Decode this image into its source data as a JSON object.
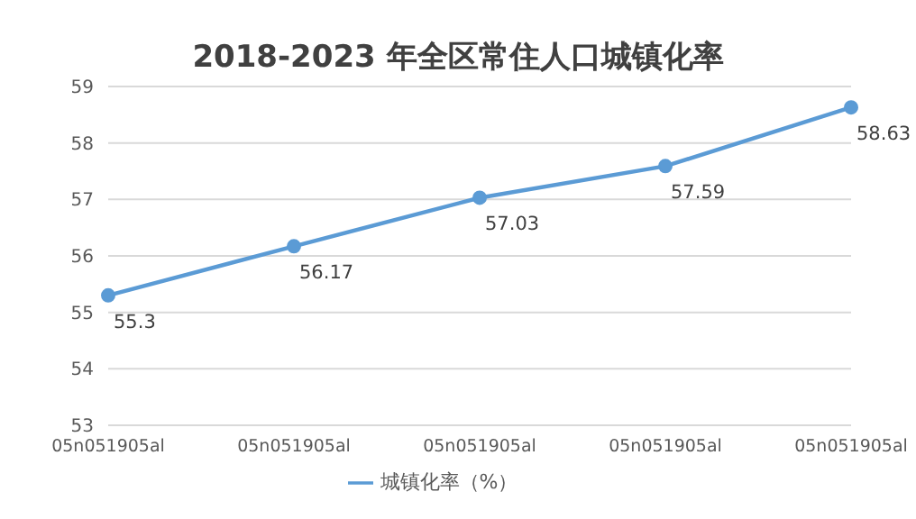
{
  "chart_data": {
    "type": "line",
    "title": "2018-2023 年全区常住人口城镇化率",
    "categories": [
      "05n051905al",
      "05n051905al",
      "05n051905al",
      "05n051905al",
      "05n051905al"
    ],
    "series": [
      {
        "name": "城镇化率（%）",
        "color": "#5b9bd5",
        "values": [
          55.3,
          56.17,
          57.03,
          57.59,
          58.63
        ]
      }
    ],
    "ylim": [
      53,
      59
    ],
    "yticks": [
      53,
      54,
      55,
      56,
      57,
      58,
      59
    ],
    "grid": "y",
    "legend": "bottom",
    "marker": "circle",
    "line_style": "solid",
    "data_labels": true
  }
}
